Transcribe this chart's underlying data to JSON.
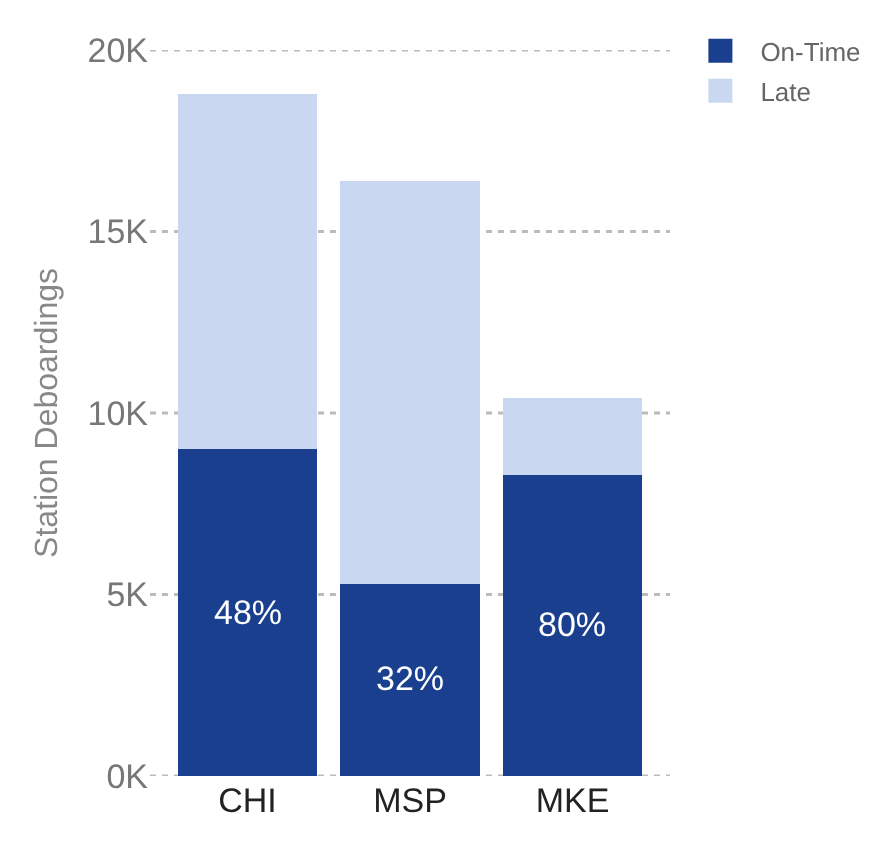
{
  "chart_data": {
    "type": "bar",
    "ylabel": "Station Deboardings",
    "categories": [
      "CHI",
      "MSP",
      "MKE"
    ],
    "stacked": true,
    "series": [
      {
        "name": "On-Time",
        "color": "#1a3f8f",
        "values": [
          9000,
          5300,
          8300
        ]
      },
      {
        "name": "Late",
        "color": "#c9d8f0",
        "values": [
          9800,
          11100,
          2100
        ]
      }
    ],
    "ylim": [
      0,
      20000
    ],
    "yticks": [
      {
        "value": 0,
        "label": "0K"
      },
      {
        "value": 5000,
        "label": "5K"
      },
      {
        "value": 10000,
        "label": "10K"
      },
      {
        "value": 15000,
        "label": "15K"
      },
      {
        "value": 20000,
        "label": "20K"
      }
    ],
    "grid": "y",
    "legend": "top right",
    "annotations": [
      "48%",
      "32%",
      "80%"
    ]
  }
}
